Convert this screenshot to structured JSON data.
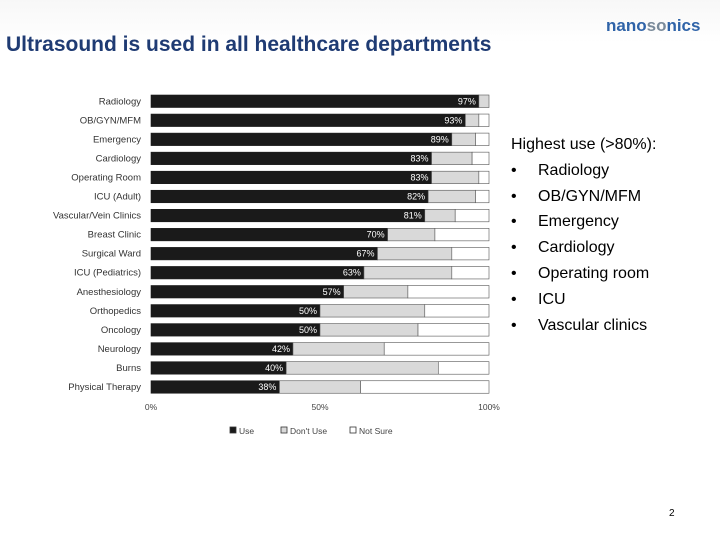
{
  "slide": {
    "title": "Ultrasound is used in all healthcare departments",
    "logo_parts": [
      "nano",
      "so",
      "nics"
    ],
    "page_number": "2"
  },
  "highlights": {
    "heading": "Highest use (>80%):",
    "bullet_glyph": "•",
    "items": [
      "Radiology",
      "OB/GYN/MFM",
      "Emergency",
      "Cardiology",
      "Operating room",
      "ICU",
      "Vascular clinics"
    ]
  },
  "colors": {
    "title": "#1f3b73",
    "use": "#1a1a1a",
    "dont_use": "#d9d9d9",
    "not_sure": "#ffffff"
  },
  "chart_data": {
    "type": "bar",
    "orientation": "horizontal",
    "stacked": true,
    "categories": [
      "Radiology",
      "OB/GYN/MFM",
      "Emergency",
      "Cardiology",
      "Operating Room",
      "ICU (Adult)",
      "Vascular/Vein Clinics",
      "Breast Clinic",
      "Surgical Ward",
      "ICU (Pediatrics)",
      "Anesthesiology",
      "Orthopedics",
      "Oncology",
      "Neurology",
      "Burns",
      "Physical Therapy"
    ],
    "series": [
      {
        "name": "Use",
        "values": [
          97,
          93,
          89,
          83,
          83,
          82,
          81,
          70,
          67,
          63,
          57,
          50,
          50,
          42,
          40,
          38
        ]
      },
      {
        "name": "Don't Use",
        "values": [
          3,
          4,
          7,
          12,
          14,
          14,
          9,
          14,
          22,
          26,
          19,
          31,
          29,
          27,
          45,
          24
        ]
      },
      {
        "name": "Not Sure",
        "values": [
          0,
          3,
          4,
          5,
          3,
          4,
          10,
          16,
          11,
          11,
          24,
          19,
          21,
          31,
          15,
          38
        ]
      }
    ],
    "data_labels": [
      "97%",
      "93%",
      "89%",
      "83%",
      "83%",
      "82%",
      "81%",
      "70%",
      "67%",
      "63%",
      "57%",
      "50%",
      "50%",
      "42%",
      "40%",
      "38%"
    ],
    "xticks": [
      "0%",
      "50%",
      "100%"
    ],
    "xlim": [
      0,
      100
    ],
    "legend": "bottom",
    "grid": false
  }
}
